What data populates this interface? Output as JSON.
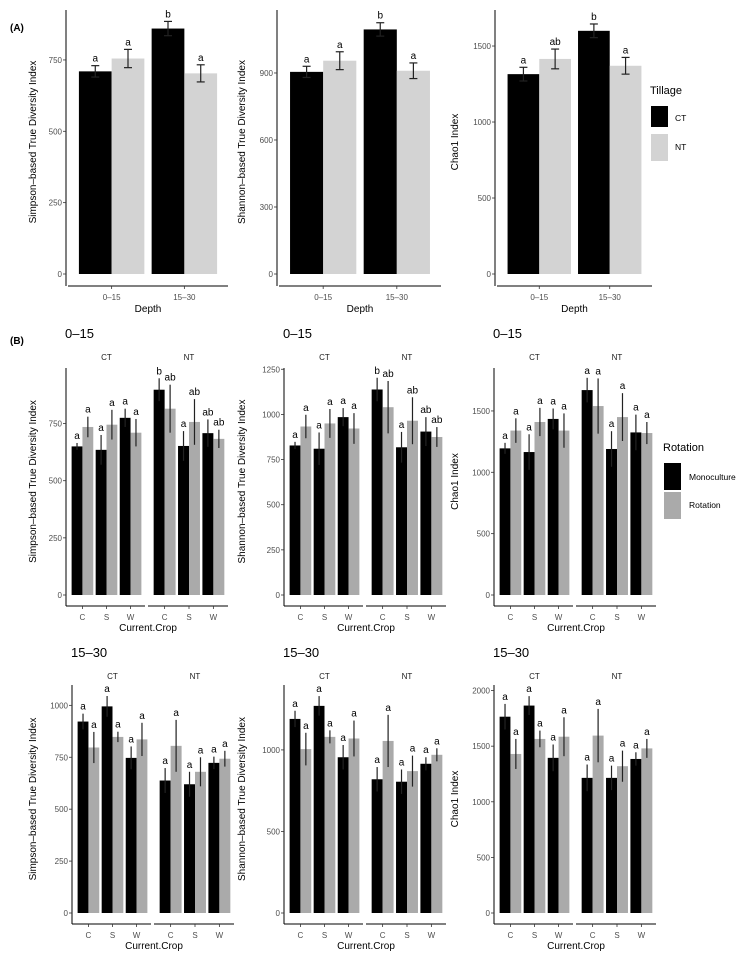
{
  "labels": {
    "a": "(A)",
    "b": "(B)"
  },
  "legend_tillage": {
    "title": "Tillage",
    "items": [
      {
        "name": "CT",
        "color": "#000000"
      },
      {
        "name": "NT",
        "color": "#d3d3d3"
      }
    ]
  },
  "legend_rotation": {
    "title": "Rotation",
    "items": [
      {
        "name": "Monoculture",
        "color": "#000000"
      },
      {
        "name": "Rotation",
        "color": "#aaaaaa"
      }
    ]
  },
  "chart_data": [
    {
      "type": "bar",
      "panel": "A",
      "ylabel": "Simpson–based True Diversity Index",
      "xlabel": "Depth",
      "ylim": [
        0,
        925
      ],
      "yticks": [
        0,
        250,
        500,
        750
      ],
      "grid": false,
      "legend": "right",
      "categories": [
        "0–15",
        "15–30"
      ],
      "facets": [
        {
          "label": "",
          "series": [
            {
              "name": "CT",
              "color": "#000000",
              "values": [
                710,
                860
              ],
              "errors": [
                20,
                25
              ],
              "letters": [
                "a",
                "b"
              ]
            },
            {
              "name": "NT",
              "color": "#d3d3d3",
              "values": [
                755,
                703
              ],
              "errors": [
                32,
                30
              ],
              "letters": [
                "a",
                "a"
              ]
            }
          ]
        }
      ]
    },
    {
      "type": "bar",
      "panel": "A",
      "ylabel": "Shannon–based True Diversity Index",
      "xlabel": "Depth",
      "ylim": [
        0,
        1182
      ],
      "yticks": [
        0,
        300,
        600,
        900
      ],
      "grid": false,
      "categories": [
        "0–15",
        "15–30"
      ],
      "facets": [
        {
          "label": "",
          "series": [
            {
              "name": "CT",
              "color": "#000000",
              "values": [
                905,
                1095
              ],
              "errors": [
                25,
                30
              ],
              "letters": [
                "a",
                "b"
              ]
            },
            {
              "name": "NT",
              "color": "#d3d3d3",
              "values": [
                955,
                910
              ],
              "errors": [
                40,
                35
              ],
              "letters": [
                "a",
                "a"
              ]
            }
          ]
        }
      ]
    },
    {
      "type": "bar",
      "panel": "A",
      "ylabel": "Chao1 Index",
      "xlabel": "Depth",
      "ylim": [
        0,
        1737
      ],
      "yticks": [
        0,
        500,
        1000,
        1500
      ],
      "grid": false,
      "categories": [
        "0–15",
        "15–30"
      ],
      "facets": [
        {
          "label": "",
          "series": [
            {
              "name": "CT",
              "color": "#000000",
              "values": [
                1315,
                1600
              ],
              "errors": [
                45,
                45
              ],
              "letters": [
                "a",
                "b"
              ]
            },
            {
              "name": "NT",
              "color": "#d3d3d3",
              "values": [
                1415,
                1370
              ],
              "errors": [
                65,
                55
              ],
              "letters": [
                "ab",
                "a"
              ]
            }
          ]
        }
      ]
    },
    {
      "type": "bar",
      "panel": "B",
      "title": "0–15",
      "ylabel": "Simpson–based True Diversity Index",
      "xlabel": "Current.Crop",
      "ylim": [
        0,
        993
      ],
      "yticks": [
        0,
        250,
        500,
        750
      ],
      "grid": false,
      "categories": [
        "C",
        "S",
        "W"
      ],
      "facets": [
        {
          "label": "CT",
          "series": [
            {
              "name": "Monoculture",
              "color": "#000000",
              "values": [
                650,
                635,
                775
              ],
              "errors": [
                15,
                65,
                40
              ],
              "letters": [
                "a",
                "a",
                "a"
              ]
            },
            {
              "name": "Rotation",
              "color": "#aaaaaa",
              "values": [
                735,
                745,
                710
              ],
              "errors": [
                45,
                65,
                60
              ],
              "letters": [
                "a",
                "a",
                "a"
              ]
            }
          ]
        },
        {
          "label": "NT",
          "series": [
            {
              "name": "Monoculture",
              "color": "#000000",
              "values": [
                898,
                652,
                708
              ],
              "errors": [
                50,
                65,
                60
              ],
              "letters": [
                "b",
                "a",
                "ab"
              ]
            },
            {
              "name": "Rotation",
              "color": "#aaaaaa",
              "values": [
                815,
                757,
                683
              ],
              "errors": [
                105,
                100,
                40
              ],
              "letters": [
                "ab",
                "ab",
                "ab"
              ]
            }
          ]
        }
      ]
    },
    {
      "type": "bar",
      "panel": "B",
      "title": "0–15",
      "ylabel": "Shannon–based True Diversity Index",
      "xlabel": "Current.Crop",
      "ylim": [
        0,
        1257
      ],
      "yticks": [
        0,
        250,
        500,
        750,
        1000,
        1250
      ],
      "grid": false,
      "categories": [
        "C",
        "S",
        "W"
      ],
      "facets": [
        {
          "label": "CT",
          "series": [
            {
              "name": "Monoculture",
              "color": "#000000",
              "values": [
                828,
                810,
                985
              ],
              "errors": [
                20,
                90,
                50
              ],
              "letters": [
                "a",
                "a",
                "a"
              ]
            },
            {
              "name": "Rotation",
              "color": "#aaaaaa",
              "values": [
                933,
                950,
                922
              ],
              "errors": [
                65,
                80,
                85
              ],
              "letters": [
                "a",
                "a",
                "a"
              ]
            }
          ]
        },
        {
          "label": "NT",
          "series": [
            {
              "name": "Monoculture",
              "color": "#000000",
              "values": [
                1138,
                818,
                905
              ],
              "errors": [
                65,
                85,
                80
              ],
              "letters": [
                "b",
                "a",
                "ab"
              ]
            },
            {
              "name": "Rotation",
              "color": "#aaaaaa",
              "values": [
                1040,
                965,
                875
              ],
              "errors": [
                145,
                130,
                55
              ],
              "letters": [
                "ab",
                "ab",
                "ab"
              ]
            }
          ]
        }
      ]
    },
    {
      "type": "bar",
      "panel": "B",
      "title": "0–15",
      "ylabel": "Chao1 Index",
      "xlabel": "Current.Crop",
      "ylim": [
        0,
        1850
      ],
      "yticks": [
        0,
        500,
        1000,
        1500
      ],
      "grid": false,
      "legend": "right",
      "categories": [
        "C",
        "S",
        "W"
      ],
      "facets": [
        {
          "label": "CT",
          "series": [
            {
              "name": "Monoculture",
              "color": "#000000",
              "values": [
                1195,
                1165,
                1435
              ],
              "errors": [
                45,
                145,
                85
              ],
              "letters": [
                "a",
                "a",
                "a"
              ]
            },
            {
              "name": "Rotation",
              "color": "#aaaaaa",
              "values": [
                1340,
                1410,
                1340
              ],
              "errors": [
                100,
                115,
                140
              ],
              "letters": [
                "a",
                "a",
                "a"
              ]
            }
          ]
        },
        {
          "label": "NT",
          "series": [
            {
              "name": "Monoculture",
              "color": "#000000",
              "values": [
                1670,
                1190,
                1325
              ],
              "errors": [
                100,
                145,
                145
              ],
              "letters": [
                "a",
                "a",
                "a"
              ]
            },
            {
              "name": "Rotation",
              "color": "#aaaaaa",
              "values": [
                1540,
                1450,
                1320
              ],
              "errors": [
                225,
                195,
                90
              ],
              "letters": [
                "a",
                "a",
                "a"
              ]
            }
          ]
        }
      ]
    },
    {
      "type": "bar",
      "panel": "B",
      "title": "15–30",
      "ylabel": "Simpson–based True Diversity Index",
      "xlabel": "Current.Crop",
      "ylim": [
        0,
        1098
      ],
      "yticks": [
        0,
        250,
        500,
        750,
        1000
      ],
      "grid": false,
      "categories": [
        "C",
        "S",
        "W"
      ],
      "facets": [
        {
          "label": "CT",
          "series": [
            {
              "name": "Monoculture",
              "color": "#000000",
              "values": [
                922,
                995,
                747
              ],
              "errors": [
                38,
                50,
                55
              ],
              "letters": [
                "a",
                "a",
                "a"
              ]
            },
            {
              "name": "Rotation",
              "color": "#aaaaaa",
              "values": [
                797,
                848,
                836
              ],
              "errors": [
                75,
                25,
                80
              ],
              "letters": [
                "a",
                "a",
                "a"
              ]
            }
          ]
        },
        {
          "label": "NT",
          "series": [
            {
              "name": "Monoculture",
              "color": "#000000",
              "values": [
                638,
                620,
                723
              ],
              "errors": [
                60,
                60,
                30
              ],
              "letters": [
                "a",
                "a",
                "a"
              ]
            },
            {
              "name": "Rotation",
              "color": "#aaaaaa",
              "values": [
                805,
                680,
                743
              ],
              "errors": [
                125,
                70,
                38
              ],
              "letters": [
                "a",
                "a",
                "a"
              ]
            }
          ]
        }
      ]
    },
    {
      "type": "bar",
      "panel": "B",
      "title": "15–30",
      "ylabel": "Shannon–based True Diversity Index",
      "xlabel": "Current.Crop",
      "ylim": [
        0,
        1398
      ],
      "yticks": [
        0,
        500,
        1000
      ],
      "grid": false,
      "categories": [
        "C",
        "S",
        "W"
      ],
      "facets": [
        {
          "label": "CT",
          "series": [
            {
              "name": "Monoculture",
              "color": "#000000",
              "values": [
                1190,
                1270,
                955
              ],
              "errors": [
                50,
                60,
                75
              ],
              "letters": [
                "a",
                "a",
                "a"
              ]
            },
            {
              "name": "Rotation",
              "color": "#aaaaaa",
              "values": [
                1005,
                1080,
                1070
              ],
              "errors": [
                100,
                40,
                110
              ],
              "letters": [
                "a",
                "a",
                "a"
              ]
            }
          ]
        },
        {
          "label": "NT",
          "series": [
            {
              "name": "Monoculture",
              "color": "#000000",
              "values": [
                820,
                805,
                915
              ],
              "errors": [
                75,
                75,
                40
              ],
              "letters": [
                "a",
                "a",
                "a"
              ]
            },
            {
              "name": "Rotation",
              "color": "#aaaaaa",
              "values": [
                1055,
                870,
                970
              ],
              "errors": [
                160,
                95,
                40
              ],
              "letters": [
                "a",
                "a",
                "a"
              ]
            }
          ]
        }
      ]
    },
    {
      "type": "bar",
      "panel": "B",
      "title": "15–30",
      "ylabel": "Chao1 Index",
      "xlabel": "Current.Crop",
      "ylim": [
        0,
        2050
      ],
      "yticks": [
        0,
        500,
        1000,
        1500,
        2000
      ],
      "grid": false,
      "categories": [
        "C",
        "S",
        "W"
      ],
      "facets": [
        {
          "label": "CT",
          "series": [
            {
              "name": "Monoculture",
              "color": "#000000",
              "values": [
                1765,
                1865,
                1395
              ],
              "errors": [
                115,
                85,
                120
              ],
              "letters": [
                "a",
                "a",
                "a"
              ]
            },
            {
              "name": "Rotation",
              "color": "#aaaaaa",
              "values": [
                1430,
                1565,
                1585
              ],
              "errors": [
                135,
                75,
                175
              ],
              "letters": [
                "a",
                "a",
                "a"
              ]
            }
          ]
        },
        {
          "label": "NT",
          "series": [
            {
              "name": "Monoculture",
              "color": "#000000",
              "values": [
                1215,
                1215,
                1385
              ],
              "errors": [
                120,
                110,
                60
              ],
              "letters": [
                "a",
                "a",
                "a"
              ]
            },
            {
              "name": "Rotation",
              "color": "#aaaaaa",
              "values": [
                1595,
                1320,
                1480
              ],
              "errors": [
                240,
                140,
                85
              ],
              "letters": [
                "a",
                "a",
                "a"
              ]
            }
          ]
        }
      ]
    }
  ]
}
